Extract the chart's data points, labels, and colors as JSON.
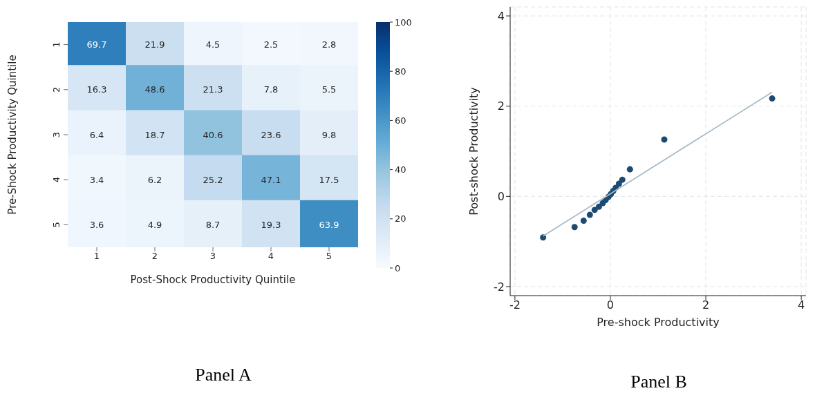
{
  "chart_data": [
    {
      "type": "heatmap",
      "title": "Panel A",
      "xlabel": "Post-Shock Productivity Quintile",
      "ylabel": "Pre-Shock Productivity Quintile",
      "categories": [
        "1",
        "2",
        "3",
        "4",
        "5"
      ],
      "y_categories": [
        "1",
        "2",
        "3",
        "4",
        "5"
      ],
      "cells": [
        [
          69.7,
          21.9,
          4.5,
          2.5,
          2.8
        ],
        [
          16.3,
          48.6,
          21.3,
          7.8,
          5.5
        ],
        [
          6.4,
          18.7,
          40.6,
          23.6,
          9.8
        ],
        [
          3.4,
          6.2,
          25.2,
          47.1,
          17.5
        ],
        [
          3.6,
          4.9,
          8.7,
          19.3,
          63.9
        ]
      ],
      "clim": [
        0,
        100
      ],
      "cticks": [
        0,
        20,
        40,
        60,
        80,
        100
      ],
      "data_labels": true
    },
    {
      "type": "scatter",
      "title": "Panel B",
      "xlabel": "Pre-shock Productivity",
      "ylabel": "Post-shock Productivity",
      "xlim": [
        -2.1,
        4.1
      ],
      "ylim": [
        -2.2,
        4.2
      ],
      "xticks": [
        -2,
        0,
        2,
        4
      ],
      "yticks": [
        -2,
        0,
        2,
        4
      ],
      "grid": true,
      "series": [
        {
          "type": "scatter",
          "color": "#1b4a72",
          "x": [
            -1.41,
            -0.75,
            -0.56,
            -0.43,
            -0.33,
            -0.24,
            -0.16,
            -0.1,
            -0.04,
            0.01,
            0.06,
            0.11,
            0.18,
            0.25,
            0.41,
            1.13,
            3.39
          ],
          "values": [
            -0.91,
            -0.68,
            -0.54,
            -0.41,
            -0.3,
            -0.23,
            -0.15,
            -0.08,
            -0.01,
            0.05,
            0.12,
            0.19,
            0.28,
            0.37,
            0.6,
            1.26,
            2.17
          ]
        },
        {
          "type": "line",
          "color": "#a9bcc7",
          "x": [
            -1.41,
            3.39
          ],
          "values": [
            -0.88,
            2.31
          ]
        }
      ]
    }
  ]
}
